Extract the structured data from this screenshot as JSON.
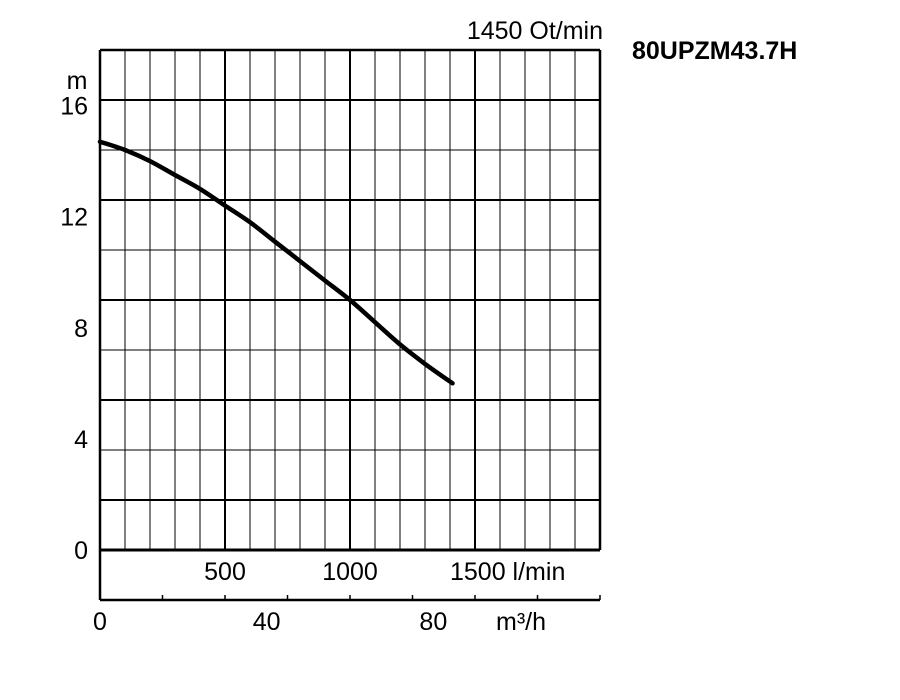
{
  "chart_data": {
    "type": "line",
    "model": "80UPZM43.7H",
    "speed_label": "1450 Ot/min",
    "ylabel": "m",
    "ylim": [
      0,
      18
    ],
    "y_ticks": [
      0,
      4,
      8,
      12,
      16
    ],
    "y_tick_labels": [
      "0",
      "4",
      "8",
      "12",
      "16"
    ],
    "x_lpm_range": [
      0,
      2000
    ],
    "x_lpm_ticks": [
      500,
      1000,
      1500
    ],
    "x_lpm_tick_labels": [
      "500",
      "1000",
      "1500 l/min"
    ],
    "x_m3h_ticks": [
      0,
      40,
      80
    ],
    "x_m3h_tick_labels": [
      "0",
      "40",
      "80"
    ],
    "x_m3h_unit": "m³/h",
    "grid": true,
    "series": [
      {
        "x": [
          0,
          100,
          200,
          300,
          400,
          500,
          600,
          700,
          800,
          900,
          1000,
          1100,
          1200,
          1300,
          1410
        ],
        "values": [
          14.7,
          14.4,
          14.0,
          13.5,
          13.0,
          12.4,
          11.8,
          11.1,
          10.4,
          9.7,
          9.0,
          8.2,
          7.4,
          6.7,
          6.0
        ]
      }
    ]
  }
}
